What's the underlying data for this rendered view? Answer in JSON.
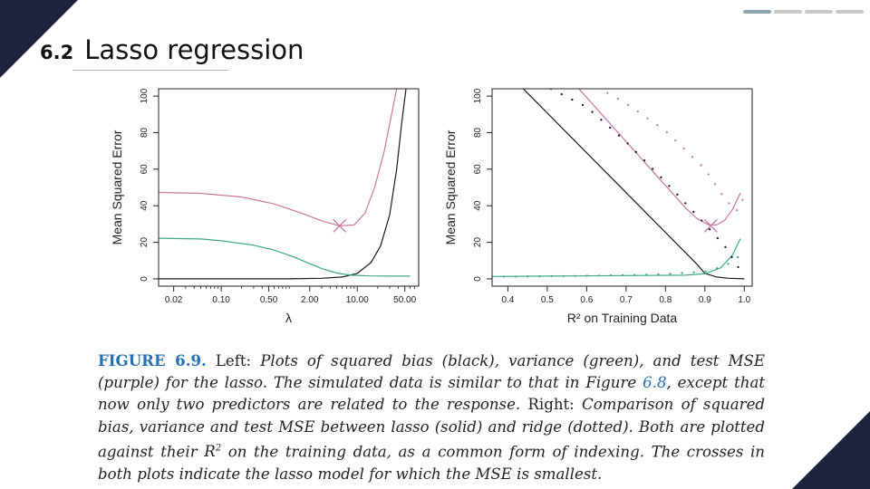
{
  "progress": {
    "segments": 4,
    "active": 1
  },
  "header": {
    "section_number": "6.2",
    "title": "Lasso regression"
  },
  "colors": {
    "bias": "#1a1a1a",
    "variance": "#3aa889",
    "test_mse": "#c7789e",
    "corner": "#1b2340",
    "figure_label": "#2470b3"
  },
  "chart_data": [
    {
      "type": "line",
      "title": "",
      "xlabel": "λ",
      "ylabel": "Mean Squared Error",
      "x_scale": "log",
      "xlim": [
        0.012,
        80
      ],
      "ylim": [
        -4,
        104
      ],
      "x_ticks": [
        0.02,
        0.1,
        0.5,
        2.0,
        10.0,
        50.0
      ],
      "x_tick_labels": [
        "0.02",
        "0.10",
        "0.50",
        "2.00",
        "10.00",
        "50.00"
      ],
      "y_ticks": [
        0,
        20,
        40,
        60,
        80,
        100
      ],
      "y_tick_labels": [
        "0",
        "20",
        "40",
        "60",
        "80",
        "100"
      ],
      "series": [
        {
          "role": "bias",
          "style": "solid",
          "x": [
            0.012,
            0.1,
            1,
            3,
            6,
            10,
            16,
            22,
            30,
            38,
            45,
            52
          ],
          "y": [
            0,
            0,
            0,
            0.3,
            1,
            3,
            9,
            18,
            35,
            60,
            85,
            104
          ]
        },
        {
          "role": "variance",
          "style": "solid",
          "x": [
            0.012,
            0.05,
            0.1,
            0.3,
            0.6,
            1.2,
            2,
            3,
            5,
            8,
            15,
            30,
            60
          ],
          "y": [
            22.2,
            21.8,
            20.8,
            18.4,
            15.7,
            11.8,
            8.3,
            5.6,
            3.2,
            2.0,
            1.6,
            1.5,
            1.5
          ]
        },
        {
          "role": "test_mse",
          "style": "solid",
          "x": [
            0.012,
            0.05,
            0.2,
            0.6,
            1.5,
            3,
            5.5,
            9,
            13,
            18,
            25,
            32,
            38
          ],
          "y": [
            47.3,
            46.8,
            44.8,
            41,
            36,
            31.7,
            29,
            29.5,
            36,
            50,
            70,
            90,
            104
          ]
        }
      ],
      "markers": [
        {
          "x": 5.5,
          "y": 29,
          "shape": "x"
        }
      ]
    },
    {
      "type": "line",
      "title": "",
      "xlabel": "R² on Training Data",
      "ylabel": "Mean Squared Error",
      "xlim": [
        0.36,
        1.02
      ],
      "ylim": [
        -4,
        104
      ],
      "x_ticks": [
        0.4,
        0.5,
        0.6,
        0.7,
        0.8,
        0.9,
        1.0
      ],
      "x_tick_labels": [
        "0.4",
        "0.5",
        "0.6",
        "0.7",
        "0.8",
        "0.9",
        "1.0"
      ],
      "y_ticks": [
        0,
        20,
        40,
        60,
        80,
        100
      ],
      "y_tick_labels": [
        "0",
        "20",
        "40",
        "60",
        "80",
        "100"
      ],
      "series": [
        {
          "role": "bias",
          "style": "solid",
          "x": [
            0.43,
            0.88,
            0.9,
            0.93,
            0.96,
            1.0
          ],
          "y": [
            106,
            8,
            3,
            1,
            0.3,
            0
          ]
        },
        {
          "role": "variance",
          "style": "solid",
          "x": [
            0.36,
            0.5,
            0.7,
            0.85,
            0.9,
            0.94,
            0.97,
            0.99
          ],
          "y": [
            1.3,
            1.5,
            1.8,
            2.0,
            2.8,
            6,
            13,
            22
          ]
        },
        {
          "role": "test_mse",
          "style": "solid",
          "x": [
            0.58,
            0.85,
            0.88,
            0.91,
            0.93,
            0.95,
            0.97,
            0.99
          ],
          "y": [
            104,
            39,
            33,
            29.5,
            29.5,
            32,
            38,
            47
          ]
        },
        {
          "role": "bias",
          "style": "dotted",
          "x": [
            0.36,
            0.5,
            0.6,
            0.7,
            0.8,
            0.9,
            0.95,
            0.98,
            1.0
          ],
          "y": [
            106,
            105,
            94,
            75,
            53,
            30,
            18,
            8,
            1
          ]
        },
        {
          "role": "variance",
          "style": "dotted",
          "x": [
            0.36,
            0.5,
            0.6,
            0.7,
            0.8,
            0.9,
            0.95,
            0.98,
            1.0
          ],
          "y": [
            1.2,
            1.4,
            1.7,
            2.0,
            2.6,
            4,
            7,
            11,
            16
          ]
        },
        {
          "role": "test_mse",
          "style": "dotted",
          "x": [
            0.6,
            0.7,
            0.8,
            0.9,
            0.95,
            0.98,
            1.0
          ],
          "y": [
            108,
            96,
            81,
            60,
            44,
            37,
            45
          ]
        }
      ],
      "markers": [
        {
          "x": 0.915,
          "y": 29,
          "shape": "x"
        }
      ]
    }
  ],
  "caption": {
    "label": "FIGURE 6.9.",
    "p1": "Left:",
    "p2": "Plots of squared bias (black), variance (green), and test MSE (purple) for the lasso. The simulated data is similar to that in Figure",
    "ref": "6.8",
    "p3": ", except that now only two predictors are related to the response.",
    "p4": "Right:",
    "p5": "Comparison of squared bias, variance and test MSE between lasso (solid) and ridge (dotted). Both are plotted against their",
    "r_symbol": "R",
    "r_exp": "2",
    "p6": "on the training data, as a common form of indexing. The crosses in both plots indicate the lasso model for which the MSE is smallest."
  }
}
